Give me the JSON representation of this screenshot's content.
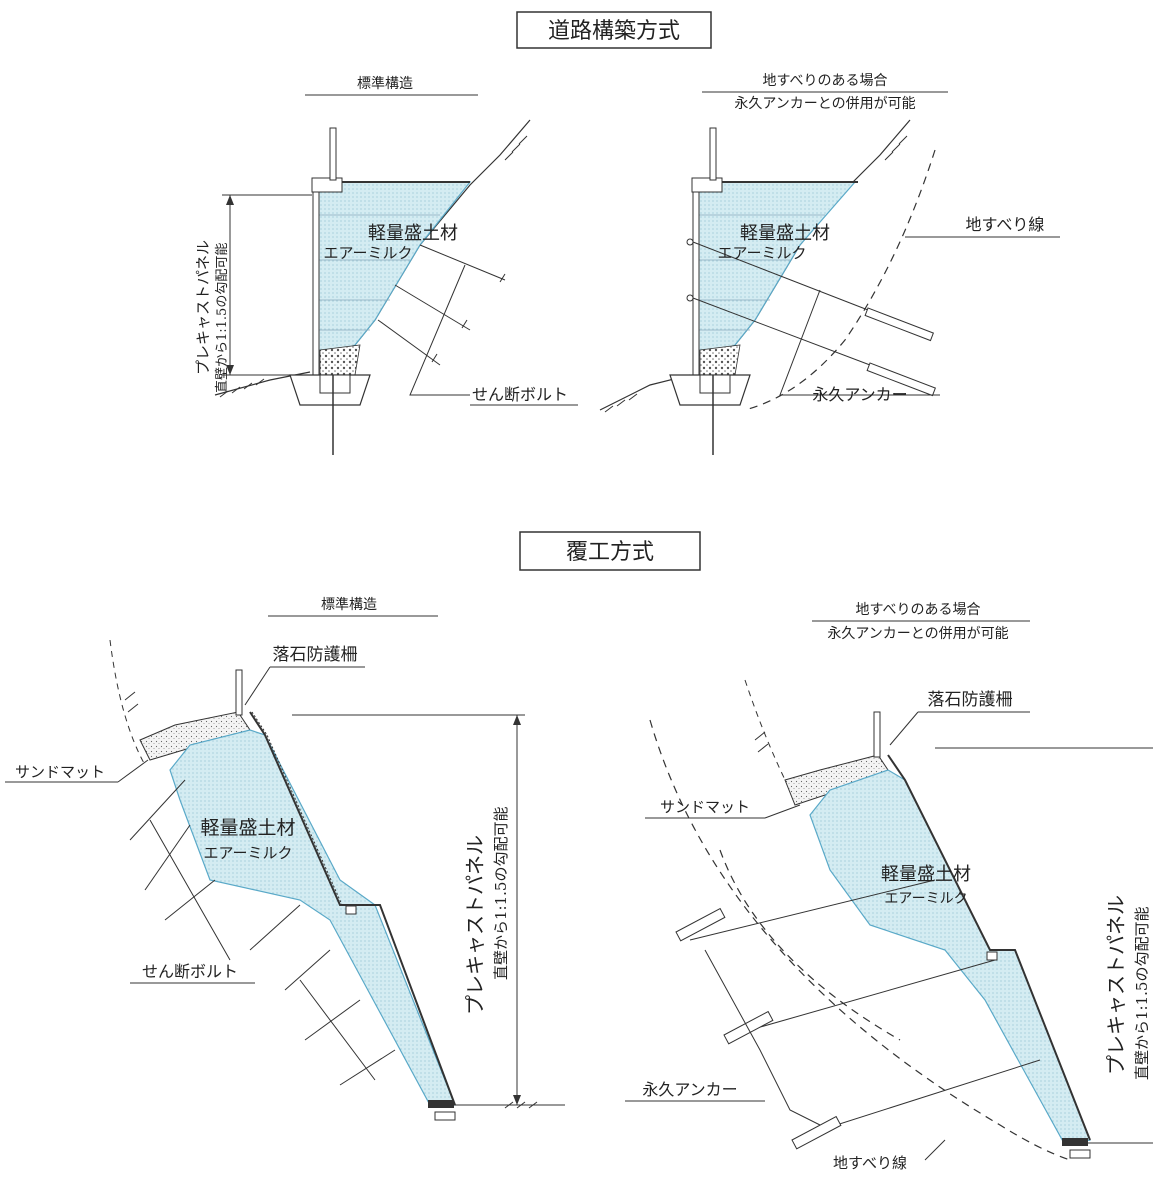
{
  "road": {
    "title": "道路構築方式",
    "standard": {
      "heading": "標準構造",
      "fill_material_line1": "軽量盛土材",
      "fill_material_line2": "エアーミルク",
      "panel_line1": "プレキャストパネル",
      "panel_line2": "直壁から1:1.5の勾配可能",
      "bolt_label": "せん断ボルト"
    },
    "landslide": {
      "heading_line1": "地すべりのある場合",
      "heading_line2": "永久アンカーとの併用が可能",
      "fill_material_line1": "軽量盛土材",
      "fill_material_line2": "エアーミルク",
      "slip_line_label": "地すべり線",
      "anchor_label": "永久アンカー"
    }
  },
  "cover": {
    "title": "覆工方式",
    "standard": {
      "heading": "標準構造",
      "rockfall_fence": "落石防護柵",
      "sand_mat": "サンドマット",
      "fill_material_line1": "軽量盛土材",
      "fill_material_line2": "エアーミルク",
      "panel_line1": "プレキャストパネル",
      "panel_line2": "直壁から1:1.5の勾配可能",
      "bolt_label": "せん断ボルト"
    },
    "landslide": {
      "heading_line1": "地すべりのある場合",
      "heading_line2": "永久アンカーとの併用が可能",
      "rockfall_fence": "落石防護柵",
      "sand_mat": "サンドマット",
      "fill_material_line1": "軽量盛土材",
      "fill_material_line2": "エアーミルク",
      "panel_line1": "プレキャストパネル",
      "panel_line2": "直壁から1:1.5の勾配可能",
      "anchor_label": "永久アンカー",
      "slip_line_label": "地すべり線"
    }
  },
  "colors": {
    "fill": "#cfe8ef",
    "fill_edge": "#5aa9c8",
    "ink": "#222222"
  }
}
